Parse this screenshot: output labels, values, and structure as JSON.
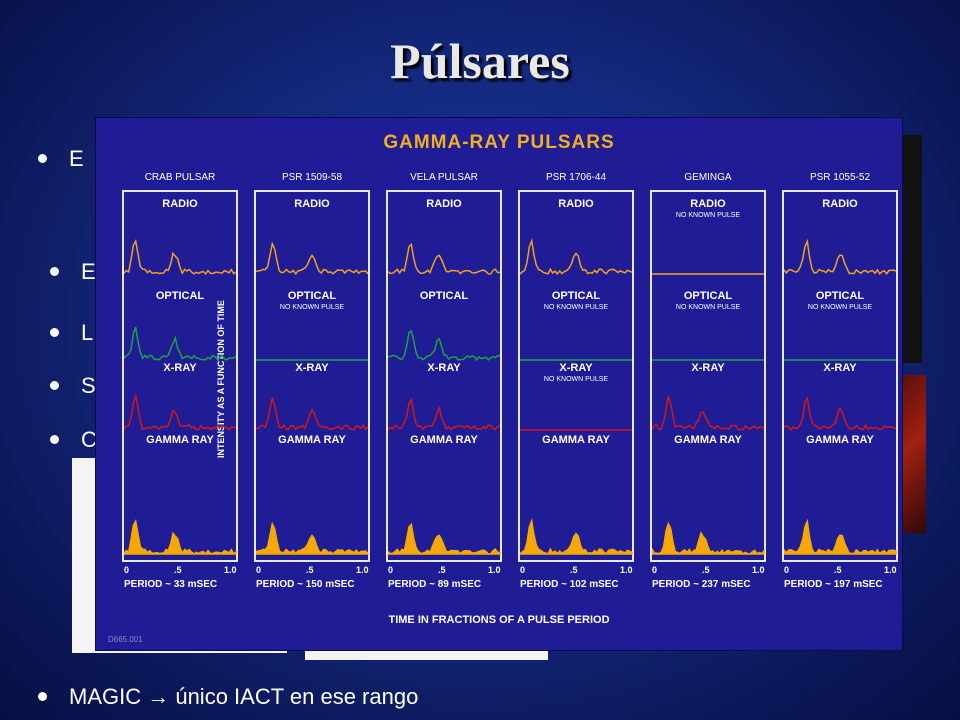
{
  "slide": {
    "title": "Púlsares",
    "bullets": [
      {
        "text": "E"
      },
      {
        "text": "E"
      },
      {
        "text": "L"
      },
      {
        "text": "S"
      },
      {
        "text": "C"
      },
      {
        "text": "MAGIC → único IACT en ese rango"
      }
    ]
  },
  "figure": {
    "title": "GAMMA-RAY PULSARS",
    "y_axis_label": "INTENSITY AS A FUNCTION OF TIME",
    "x_axis_label": "TIME IN FRACTIONS OF A PULSE PERIOD",
    "figure_id": "D665.001",
    "bands": {
      "radio": "RADIO",
      "optical": "OPTICAL",
      "xray": "X-RAY",
      "gamma": "GAMMA RAY",
      "no_pulse": "NO KNOWN PULSE"
    },
    "ticks": [
      "0",
      ".5",
      "1.0"
    ],
    "colors": {
      "radio": "#f0a020",
      "optical": "#20a040",
      "xray": "#d01818",
      "gamma": "#f5a800"
    },
    "pulsars": [
      {
        "name": "CRAB PULSAR",
        "period": "PERIOD ~ 33 mSEC"
      },
      {
        "name": "PSR 1509-58",
        "period": "PERIOD ~ 150 mSEC"
      },
      {
        "name": "VELA PULSAR",
        "period": "PERIOD ~ 89 mSEC"
      },
      {
        "name": "PSR 1706-44",
        "period": "PERIOD ~ 102 mSEC"
      },
      {
        "name": "GEMINGA",
        "period": "PERIOD ~ 237 mSEC"
      },
      {
        "name": "PSR 1055-52",
        "period": "PERIOD ~ 197 mSEC"
      }
    ]
  }
}
